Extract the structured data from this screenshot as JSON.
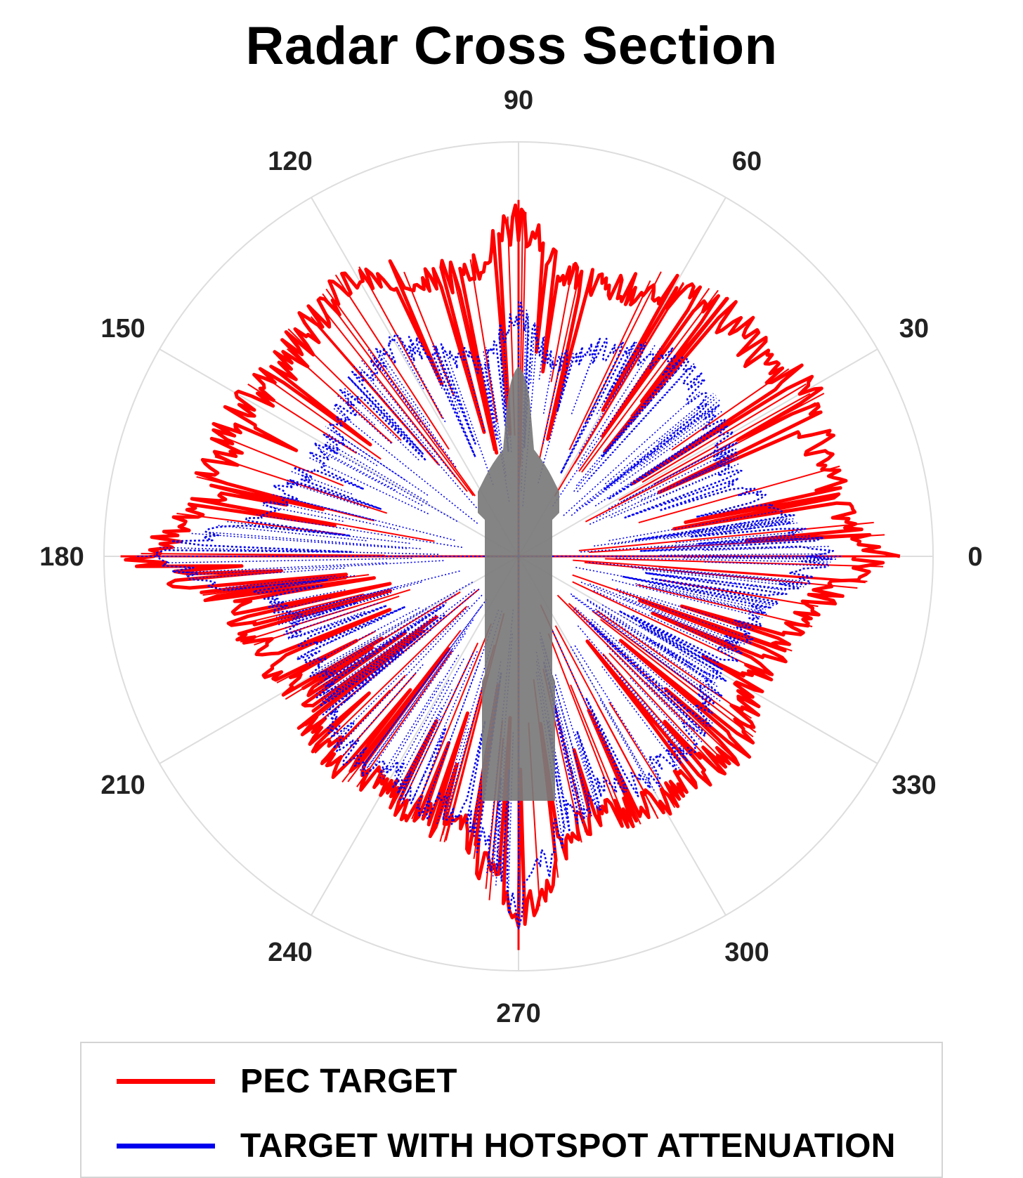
{
  "chart_data": {
    "type": "polar-line",
    "title": "Radar Cross Section",
    "angle_unit": "degrees",
    "angular_ticks": [
      "0",
      "30",
      "60",
      "90",
      "120",
      "150",
      "180",
      "210",
      "240",
      "270",
      "300",
      "330"
    ],
    "grid": true,
    "radial_tick_labels": false,
    "legend_position": "bottom",
    "series": [
      {
        "name": "PEC TARGET",
        "color": "#ff0000",
        "style": "solid",
        "angles": [
          0,
          10,
          20,
          30,
          40,
          50,
          60,
          70,
          80,
          90,
          100,
          110,
          120,
          130,
          140,
          150,
          160,
          170,
          180,
          190,
          200,
          210,
          220,
          230,
          240,
          250,
          260,
          270,
          280,
          290,
          300,
          310,
          320,
          330,
          340,
          350
        ],
        "values": [
          0.92,
          0.83,
          0.82,
          0.84,
          0.81,
          0.81,
          0.79,
          0.73,
          0.72,
          0.86,
          0.72,
          0.76,
          0.82,
          0.8,
          0.77,
          0.79,
          0.81,
          0.8,
          0.96,
          0.73,
          0.7,
          0.66,
          0.68,
          0.7,
          0.68,
          0.71,
          0.72,
          0.95,
          0.72,
          0.7,
          0.73,
          0.72,
          0.74,
          0.68,
          0.7,
          0.75
        ]
      },
      {
        "name": "TARGET WITH HOTSPOT ATTENUATION",
        "color": "#0000ee",
        "style": "dotted",
        "angles": [
          0,
          10,
          20,
          30,
          40,
          50,
          60,
          70,
          80,
          90,
          100,
          110,
          120,
          130,
          140,
          150,
          160,
          170,
          180,
          190,
          200,
          210,
          220,
          230,
          240,
          250,
          260,
          270,
          280,
          290,
          300,
          310,
          320,
          330,
          340,
          350
        ],
        "values": [
          0.78,
          0.66,
          0.58,
          0.6,
          0.62,
          0.64,
          0.6,
          0.56,
          0.5,
          0.62,
          0.5,
          0.55,
          0.62,
          0.62,
          0.58,
          0.56,
          0.6,
          0.64,
          0.92,
          0.62,
          0.6,
          0.58,
          0.62,
          0.66,
          0.64,
          0.68,
          0.68,
          0.9,
          0.68,
          0.64,
          0.66,
          0.64,
          0.62,
          0.58,
          0.6,
          0.64
        ]
      }
    ]
  },
  "legend": {
    "items": [
      {
        "label": "PEC TARGET",
        "color": "#ff0000"
      },
      {
        "label": "TARGET WITH HOTSPOT ATTENUATION",
        "color": "#0000ee"
      }
    ]
  }
}
